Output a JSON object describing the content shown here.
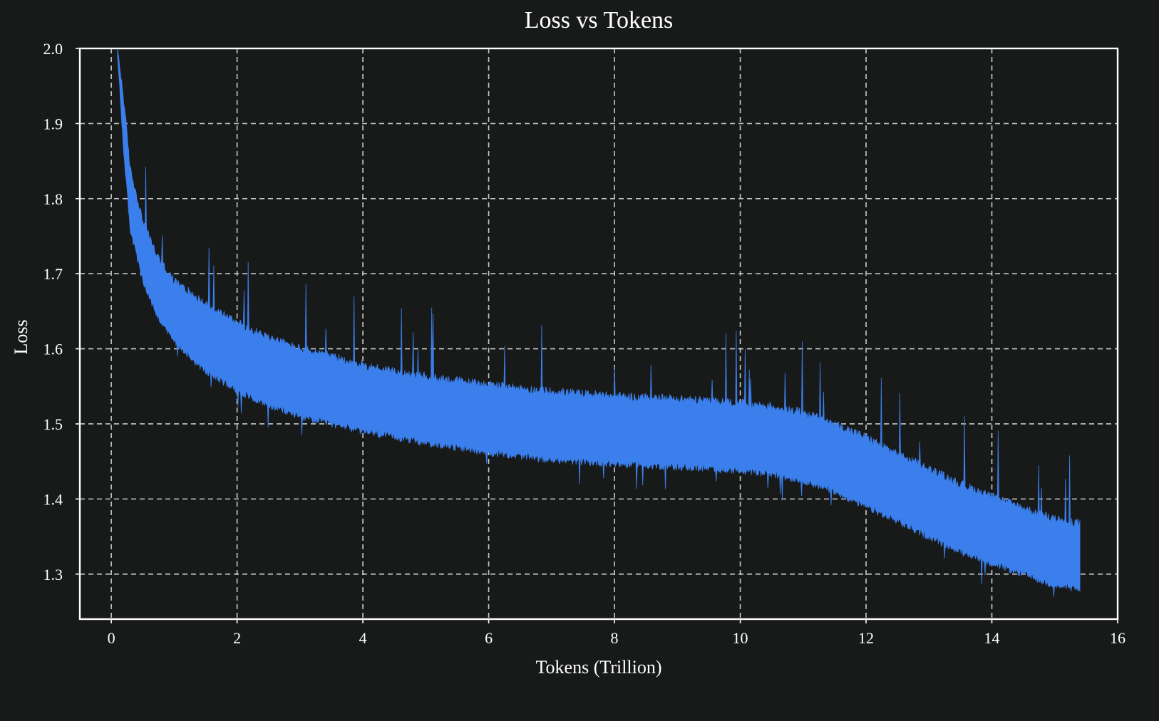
{
  "chart_data": {
    "type": "line",
    "title": "Loss vs Tokens",
    "xlabel": "Tokens (Trillion)",
    "ylabel": "Loss",
    "xlim": [
      -0.5,
      16
    ],
    "ylim": [
      1.24,
      2.0
    ],
    "x_ticks": [
      0,
      2,
      4,
      6,
      8,
      10,
      12,
      14,
      16
    ],
    "x_tick_labels": [
      "0",
      "2",
      "4",
      "6",
      "8",
      "10",
      "12",
      "14",
      "16"
    ],
    "y_ticks": [
      1.3,
      1.4,
      1.5,
      1.6,
      1.7,
      1.8,
      1.9,
      2.0
    ],
    "y_tick_labels": [
      "1.3",
      "1.4",
      "1.5",
      "1.6",
      "1.7",
      "1.8",
      "1.9",
      "2.0"
    ],
    "grid": true,
    "line_color": "#3b7fed",
    "background_color": "#181a1a",
    "series": [
      {
        "x": [
          0.1,
          0.2,
          0.3,
          0.5,
          0.75,
          1.0,
          1.5,
          2.0,
          2.5,
          3.0,
          3.5,
          4.0,
          5.0,
          6.0,
          7.0,
          8.0,
          9.0,
          10.0,
          10.5,
          11.0,
          11.5,
          12.0,
          12.5,
          13.0,
          13.5,
          14.0,
          14.5,
          15.0,
          15.4
        ],
        "lower": [
          1.99,
          1.86,
          1.76,
          1.69,
          1.64,
          1.61,
          1.57,
          1.545,
          1.525,
          1.51,
          1.5,
          1.49,
          1.475,
          1.462,
          1.452,
          1.447,
          1.443,
          1.438,
          1.433,
          1.425,
          1.41,
          1.39,
          1.37,
          1.35,
          1.33,
          1.315,
          1.3,
          1.285,
          1.28
        ],
        "upper": [
          2.0,
          1.93,
          1.84,
          1.77,
          1.72,
          1.69,
          1.66,
          1.635,
          1.615,
          1.6,
          1.59,
          1.578,
          1.563,
          1.552,
          1.543,
          1.537,
          1.533,
          1.528,
          1.523,
          1.515,
          1.5,
          1.482,
          1.46,
          1.44,
          1.42,
          1.403,
          1.388,
          1.373,
          1.368
        ]
      }
    ]
  }
}
